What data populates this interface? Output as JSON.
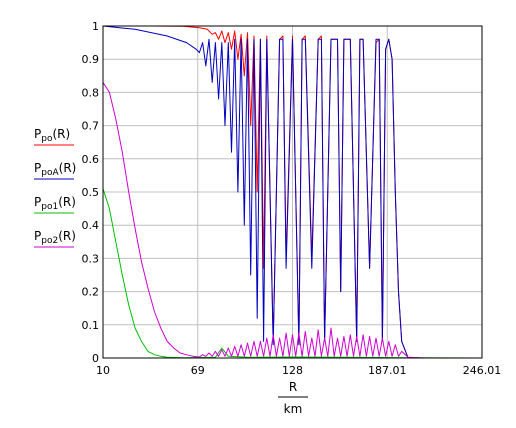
{
  "chart_data": {
    "type": "line",
    "title": "",
    "xlabel": "R",
    "xlabel_unit": "km",
    "xlim": [
      10,
      246.01
    ],
    "ylim": [
      0,
      1
    ],
    "x_ticks": [
      "10",
      "69",
      "128",
      "187.01",
      "246.01"
    ],
    "y_ticks": [
      "0",
      "0.1",
      "0.2",
      "0.3",
      "0.4",
      "0.5",
      "0.6",
      "0.7",
      "0.8",
      "0.9",
      "1"
    ],
    "grid": true,
    "legend_position": "left",
    "legend": [
      {
        "base": "P",
        "sub": "po",
        "arg": "(R)",
        "color": "#ff0000"
      },
      {
        "base": "P",
        "sub": "poA",
        "arg": "(R)",
        "color": "#0000c0"
      },
      {
        "base": "P",
        "sub": "po1",
        "arg": "(R)",
        "color": "#00c000"
      },
      {
        "base": "P",
        "sub": "po2",
        "arg": "(R)",
        "color": "#d000d0"
      }
    ],
    "series": [
      {
        "color": "#ff0000",
        "x": [
          10,
          40,
          60,
          70,
          75,
          78,
          80,
          82,
          84,
          86,
          88,
          90,
          92,
          94,
          96,
          98,
          100,
          102,
          104,
          106,
          108,
          110,
          112,
          116,
          120,
          122,
          124,
          128,
          132,
          134,
          136,
          140,
          144,
          146,
          148,
          152,
          156,
          158,
          160,
          164,
          168,
          170,
          172,
          176,
          180,
          182,
          184,
          186,
          188,
          190,
          192,
          194,
          196,
          200,
          210,
          246.01
        ],
        "y": [
          1,
          1,
          0.999,
          0.995,
          0.99,
          0.975,
          0.98,
          0.96,
          0.985,
          0.95,
          0.98,
          0.93,
          0.985,
          0.9,
          0.975,
          0.85,
          0.98,
          0.7,
          0.97,
          0.5,
          0.96,
          0.27,
          0.97,
          0.05,
          0.96,
          0.97,
          0.3,
          0.97,
          0.04,
          0.96,
          0.97,
          0.3,
          0.96,
          0.97,
          0.05,
          0.96,
          0.96,
          0.2,
          0.96,
          0.96,
          0.05,
          0.96,
          0.96,
          0.27,
          0.95,
          0.96,
          0.05,
          0.93,
          0.96,
          0.9,
          0.5,
          0.2,
          0.05,
          0.0,
          0.0,
          0.0
        ]
      },
      {
        "color": "#0000c0",
        "x": [
          10,
          30,
          50,
          62,
          68,
          70,
          72,
          74,
          76,
          78,
          80,
          82,
          84,
          86,
          88,
          90,
          92,
          94,
          96,
          98,
          100,
          102,
          104,
          106,
          108,
          110,
          112,
          116,
          120,
          122,
          124,
          128,
          132,
          134,
          136,
          140,
          144,
          146,
          148,
          152,
          156,
          158,
          160,
          164,
          168,
          170,
          172,
          176,
          180,
          182,
          184,
          186,
          188,
          190,
          192,
          194,
          196,
          200,
          210,
          246.01
        ],
        "y": [
          1,
          0.99,
          0.97,
          0.95,
          0.93,
          0.92,
          0.95,
          0.88,
          0.96,
          0.83,
          0.95,
          0.78,
          0.95,
          0.7,
          0.95,
          0.62,
          0.96,
          0.5,
          0.96,
          0.4,
          0.96,
          0.25,
          0.96,
          0.12,
          0.96,
          0.05,
          0.96,
          0.04,
          0.96,
          0.96,
          0.27,
          0.96,
          0.04,
          0.96,
          0.96,
          0.27,
          0.96,
          0.96,
          0.05,
          0.96,
          0.96,
          0.2,
          0.96,
          0.96,
          0.05,
          0.96,
          0.96,
          0.27,
          0.96,
          0.96,
          0.05,
          0.93,
          0.96,
          0.9,
          0.5,
          0.2,
          0.05,
          0.0,
          0.0,
          0.0
        ]
      },
      {
        "color": "#00c000",
        "x": [
          10,
          14,
          18,
          22,
          26,
          30,
          34,
          38,
          42,
          46,
          50,
          60,
          80,
          84,
          88,
          100,
          130,
          160,
          200,
          246.01
        ],
        "y": [
          0.51,
          0.45,
          0.35,
          0.25,
          0.16,
          0.09,
          0.05,
          0.02,
          0.01,
          0.005,
          0.002,
          0.001,
          0.002,
          0.03,
          0.005,
          0.002,
          0.003,
          0.002,
          0.001,
          0.0
        ]
      },
      {
        "color": "#d000d0",
        "x": [
          10,
          14,
          18,
          22,
          26,
          30,
          34,
          38,
          42,
          46,
          50,
          54,
          58,
          62,
          66,
          70,
          72,
          74,
          76,
          78,
          80,
          82,
          84,
          86,
          88,
          90,
          92,
          94,
          96,
          98,
          100,
          102,
          104,
          106,
          108,
          110,
          112,
          114,
          116,
          118,
          120,
          122,
          124,
          126,
          128,
          130,
          132,
          134,
          136,
          138,
          140,
          142,
          144,
          146,
          148,
          150,
          152,
          154,
          156,
          158,
          160,
          162,
          164,
          166,
          168,
          170,
          172,
          174,
          176,
          178,
          180,
          182,
          184,
          186,
          188,
          190,
          192,
          194,
          196,
          200,
          210,
          246.01
        ],
        "y": [
          0.83,
          0.8,
          0.72,
          0.62,
          0.5,
          0.39,
          0.29,
          0.21,
          0.14,
          0.09,
          0.05,
          0.03,
          0.015,
          0.01,
          0.005,
          0.003,
          0.01,
          0.005,
          0.015,
          0.005,
          0.02,
          0.005,
          0.025,
          0.005,
          0.03,
          0.005,
          0.035,
          0.005,
          0.04,
          0.005,
          0.045,
          0.005,
          0.05,
          0.005,
          0.05,
          0.005,
          0.06,
          0.005,
          0.07,
          0.005,
          0.06,
          0.005,
          0.075,
          0.005,
          0.07,
          0.005,
          0.075,
          0.005,
          0.08,
          0.005,
          0.06,
          0.005,
          0.085,
          0.005,
          0.06,
          0.005,
          0.09,
          0.005,
          0.06,
          0.005,
          0.065,
          0.005,
          0.07,
          0.005,
          0.065,
          0.005,
          0.07,
          0.005,
          0.065,
          0.005,
          0.06,
          0.005,
          0.06,
          0.005,
          0.05,
          0.005,
          0.04,
          0.005,
          0.02,
          0.002,
          0.0,
          0.0
        ]
      }
    ]
  }
}
